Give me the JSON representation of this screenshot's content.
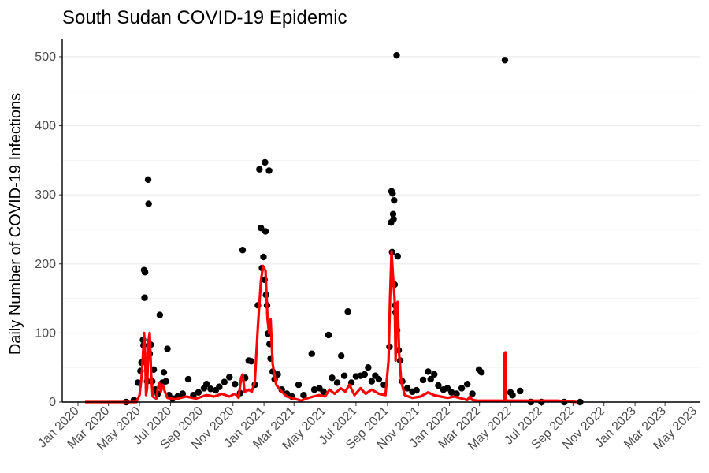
{
  "chart_data": {
    "type": "scatter",
    "title": "South Sudan COVID-19 Epidemic",
    "xlabel": "",
    "ylabel": "Daily Number of COVID-19 Infections",
    "ylim": [
      0,
      525
    ],
    "yticks": [
      0,
      100,
      200,
      300,
      400,
      500
    ],
    "xlim": [
      "2019-12-01",
      "2023-05-08"
    ],
    "xticks": [
      {
        "date": "2020-01-01",
        "label": "Jan 2020"
      },
      {
        "date": "2020-03-01",
        "label": "Mar 2020"
      },
      {
        "date": "2020-05-01",
        "label": "May 2020"
      },
      {
        "date": "2020-07-01",
        "label": "Jul 2020"
      },
      {
        "date": "2020-09-01",
        "label": "Sep 2020"
      },
      {
        "date": "2020-11-01",
        "label": "Nov 2020"
      },
      {
        "date": "2021-01-01",
        "label": "Jan 2021"
      },
      {
        "date": "2021-03-01",
        "label": "Mar 2021"
      },
      {
        "date": "2021-05-01",
        "label": "May 2021"
      },
      {
        "date": "2021-07-01",
        "label": "Jul 2021"
      },
      {
        "date": "2021-09-01",
        "label": "Sep 2021"
      },
      {
        "date": "2021-11-01",
        "label": "Nov 2021"
      },
      {
        "date": "2022-01-01",
        "label": "Jan 2022"
      },
      {
        "date": "2022-03-01",
        "label": "Mar 2022"
      },
      {
        "date": "2022-05-01",
        "label": "May 2022"
      },
      {
        "date": "2022-07-01",
        "label": "Jul 2022"
      },
      {
        "date": "2022-09-01",
        "label": "Sep 2022"
      },
      {
        "date": "2022-11-01",
        "label": "Nov 2022"
      },
      {
        "date": "2023-01-01",
        "label": "Jan 2023"
      },
      {
        "date": "2023-03-01",
        "label": "Mar 2023"
      },
      {
        "date": "2023-05-01",
        "label": "May 2023"
      }
    ],
    "grid": "horizontal",
    "colors": {
      "points": "#000000",
      "line": "#ff0000",
      "grid": "#ebebeb",
      "axis": "#000000"
    },
    "series": [
      {
        "type": "scatter",
        "points": [
          [
            "2020-04-05",
            0
          ],
          [
            "2020-04-20",
            3
          ],
          [
            "2020-04-28",
            28
          ],
          [
            "2020-05-03",
            45
          ],
          [
            "2020-05-05",
            57
          ],
          [
            "2020-05-08",
            90
          ],
          [
            "2020-05-09",
            82
          ],
          [
            "2020-05-10",
            191
          ],
          [
            "2020-05-11",
            151
          ],
          [
            "2020-05-12",
            188
          ],
          [
            "2020-05-14",
            60
          ],
          [
            "2020-05-16",
            30
          ],
          [
            "2020-05-18",
            322
          ],
          [
            "2020-05-19",
            287
          ],
          [
            "2020-05-21",
            70
          ],
          [
            "2020-05-23",
            83
          ],
          [
            "2020-05-26",
            30
          ],
          [
            "2020-05-29",
            47
          ],
          [
            "2020-06-01",
            18
          ],
          [
            "2020-06-06",
            12
          ],
          [
            "2020-06-10",
            126
          ],
          [
            "2020-06-15",
            28
          ],
          [
            "2020-06-18",
            43
          ],
          [
            "2020-06-22",
            30
          ],
          [
            "2020-06-25",
            77
          ],
          [
            "2020-06-28",
            10
          ],
          [
            "2020-07-05",
            5
          ],
          [
            "2020-07-15",
            8
          ],
          [
            "2020-07-25",
            12
          ],
          [
            "2020-08-05",
            33
          ],
          [
            "2020-08-15",
            10
          ],
          [
            "2020-08-25",
            14
          ],
          [
            "2020-09-05",
            20
          ],
          [
            "2020-09-10",
            26
          ],
          [
            "2020-09-18",
            19
          ],
          [
            "2020-09-28",
            17
          ],
          [
            "2020-10-05",
            22
          ],
          [
            "2020-10-15",
            29
          ],
          [
            "2020-10-25",
            36
          ],
          [
            "2020-11-05",
            26
          ],
          [
            "2020-11-15",
            13
          ],
          [
            "2020-11-20",
            220
          ],
          [
            "2020-11-25",
            35
          ],
          [
            "2020-12-02",
            60
          ],
          [
            "2020-12-07",
            59
          ],
          [
            "2020-12-14",
            25
          ],
          [
            "2020-12-20",
            140
          ],
          [
            "2020-12-23",
            337
          ],
          [
            "2020-12-26",
            252
          ],
          [
            "2020-12-28",
            194
          ],
          [
            "2020-12-31",
            210
          ],
          [
            "2021-01-02",
            177
          ],
          [
            "2021-01-03",
            347
          ],
          [
            "2021-01-04",
            247
          ],
          [
            "2021-01-05",
            155
          ],
          [
            "2021-01-07",
            140
          ],
          [
            "2021-01-09",
            99
          ],
          [
            "2021-01-11",
            335
          ],
          [
            "2021-01-12",
            84
          ],
          [
            "2021-01-14",
            63
          ],
          [
            "2021-01-18",
            44
          ],
          [
            "2021-01-22",
            33
          ],
          [
            "2021-01-28",
            40
          ],
          [
            "2021-02-05",
            18
          ],
          [
            "2021-02-15",
            12
          ],
          [
            "2021-02-25",
            8
          ],
          [
            "2021-03-10",
            25
          ],
          [
            "2021-03-20",
            10
          ],
          [
            "2021-04-05",
            70
          ],
          [
            "2021-04-10",
            18
          ],
          [
            "2021-04-20",
            20
          ],
          [
            "2021-04-28",
            15
          ],
          [
            "2021-05-08",
            97
          ],
          [
            "2021-05-15",
            35
          ],
          [
            "2021-05-25",
            28
          ],
          [
            "2021-06-02",
            67
          ],
          [
            "2021-06-08",
            38
          ],
          [
            "2021-06-15",
            131
          ],
          [
            "2021-06-22",
            28
          ],
          [
            "2021-07-01",
            37
          ],
          [
            "2021-07-10",
            38
          ],
          [
            "2021-07-18",
            40
          ],
          [
            "2021-07-25",
            50
          ],
          [
            "2021-08-01",
            30
          ],
          [
            "2021-08-08",
            38
          ],
          [
            "2021-08-15",
            33
          ],
          [
            "2021-08-25",
            25
          ],
          [
            "2021-09-05",
            80
          ],
          [
            "2021-09-08",
            260
          ],
          [
            "2021-09-09",
            305
          ],
          [
            "2021-09-10",
            217
          ],
          [
            "2021-09-11",
            302
          ],
          [
            "2021-09-12",
            272
          ],
          [
            "2021-09-13",
            265
          ],
          [
            "2021-09-14",
            292
          ],
          [
            "2021-09-15",
            170
          ],
          [
            "2021-09-16",
            140
          ],
          [
            "2021-09-17",
            130
          ],
          [
            "2021-09-19",
            502
          ],
          [
            "2021-09-20",
            104
          ],
          [
            "2021-09-21",
            211
          ],
          [
            "2021-09-23",
            75
          ],
          [
            "2021-09-26",
            60
          ],
          [
            "2021-09-30",
            30
          ],
          [
            "2021-10-10",
            20
          ],
          [
            "2021-10-20",
            15
          ],
          [
            "2021-10-28",
            17
          ],
          [
            "2021-11-10",
            32
          ],
          [
            "2021-11-20",
            44
          ],
          [
            "2021-11-25",
            33
          ],
          [
            "2021-12-02",
            40
          ],
          [
            "2021-12-10",
            24
          ],
          [
            "2021-12-20",
            18
          ],
          [
            "2021-12-28",
            20
          ],
          [
            "2022-01-05",
            14
          ],
          [
            "2022-01-15",
            12
          ],
          [
            "2022-01-25",
            20
          ],
          [
            "2022-02-05",
            26
          ],
          [
            "2022-02-15",
            12
          ],
          [
            "2022-02-28",
            47
          ],
          [
            "2022-03-05",
            43
          ],
          [
            "2022-04-20",
            495
          ],
          [
            "2022-05-01",
            14
          ],
          [
            "2022-05-05",
            10
          ],
          [
            "2022-05-20",
            16
          ],
          [
            "2022-06-10",
            0
          ],
          [
            "2022-07-01",
            0
          ],
          [
            "2022-08-15",
            0
          ],
          [
            "2022-09-15",
            0
          ]
        ]
      },
      {
        "type": "line",
        "points": [
          [
            "2020-01-15",
            0
          ],
          [
            "2020-04-01",
            0
          ],
          [
            "2020-04-25",
            0
          ],
          [
            "2020-05-01",
            10
          ],
          [
            "2020-05-05",
            35
          ],
          [
            "2020-05-08",
            70
          ],
          [
            "2020-05-10",
            100
          ],
          [
            "2020-05-12",
            70
          ],
          [
            "2020-05-14",
            10
          ],
          [
            "2020-05-16",
            20
          ],
          [
            "2020-05-19",
            90
          ],
          [
            "2020-05-21",
            100
          ],
          [
            "2020-05-24",
            40
          ],
          [
            "2020-05-27",
            8
          ],
          [
            "2020-06-03",
            5
          ],
          [
            "2020-06-06",
            20
          ],
          [
            "2020-06-09",
            27
          ],
          [
            "2020-06-12",
            15
          ],
          [
            "2020-06-16",
            25
          ],
          [
            "2020-06-20",
            15
          ],
          [
            "2020-06-25",
            6
          ],
          [
            "2020-07-10",
            4
          ],
          [
            "2020-08-01",
            8
          ],
          [
            "2020-08-20",
            5
          ],
          [
            "2020-09-10",
            10
          ],
          [
            "2020-09-25",
            8
          ],
          [
            "2020-10-10",
            12
          ],
          [
            "2020-10-25",
            8
          ],
          [
            "2020-11-05",
            12
          ],
          [
            "2020-11-12",
            6
          ],
          [
            "2020-11-17",
            35
          ],
          [
            "2020-11-20",
            40
          ],
          [
            "2020-11-24",
            15
          ],
          [
            "2020-12-02",
            18
          ],
          [
            "2020-12-08",
            15
          ],
          [
            "2020-12-14",
            30
          ],
          [
            "2020-12-20",
            110
          ],
          [
            "2020-12-26",
            175
          ],
          [
            "2020-12-30",
            197
          ],
          [
            "2021-01-04",
            190
          ],
          [
            "2021-01-08",
            120
          ],
          [
            "2021-01-11",
            100
          ],
          [
            "2021-01-14",
            120
          ],
          [
            "2021-01-18",
            55
          ],
          [
            "2021-01-25",
            25
          ],
          [
            "2021-02-05",
            15
          ],
          [
            "2021-02-15",
            8
          ],
          [
            "2021-03-01",
            5
          ],
          [
            "2021-03-15",
            2
          ],
          [
            "2021-03-25",
            5
          ],
          [
            "2021-04-08",
            8
          ],
          [
            "2021-04-20",
            10
          ],
          [
            "2021-05-01",
            8
          ],
          [
            "2021-05-10",
            18
          ],
          [
            "2021-05-20",
            12
          ],
          [
            "2021-06-01",
            20
          ],
          [
            "2021-06-10",
            15
          ],
          [
            "2021-06-18",
            25
          ],
          [
            "2021-06-28",
            10
          ],
          [
            "2021-07-10",
            20
          ],
          [
            "2021-07-20",
            12
          ],
          [
            "2021-08-01",
            18
          ],
          [
            "2021-08-15",
            12
          ],
          [
            "2021-08-28",
            10
          ],
          [
            "2021-09-03",
            60
          ],
          [
            "2021-09-06",
            150
          ],
          [
            "2021-09-09",
            218
          ],
          [
            "2021-09-12",
            180
          ],
          [
            "2021-09-15",
            150
          ],
          [
            "2021-09-17",
            60
          ],
          [
            "2021-09-19",
            140
          ],
          [
            "2021-09-21",
            145
          ],
          [
            "2021-09-24",
            70
          ],
          [
            "2021-09-28",
            30
          ],
          [
            "2021-10-05",
            10
          ],
          [
            "2021-10-20",
            6
          ],
          [
            "2021-11-05",
            8
          ],
          [
            "2021-11-20",
            14
          ],
          [
            "2021-12-01",
            10
          ],
          [
            "2021-12-15",
            8
          ],
          [
            "2021-12-28",
            6
          ],
          [
            "2022-01-10",
            8
          ],
          [
            "2022-01-25",
            5
          ],
          [
            "2022-02-05",
            3
          ],
          [
            "2022-02-10",
            8
          ],
          [
            "2022-02-15",
            3
          ],
          [
            "2022-02-25",
            2
          ],
          [
            "2022-03-20",
            2
          ],
          [
            "2022-04-18",
            2
          ],
          [
            "2022-04-19",
            70
          ],
          [
            "2022-04-21",
            72
          ],
          [
            "2022-04-22",
            2
          ],
          [
            "2022-05-15",
            2
          ],
          [
            "2022-06-15",
            2
          ],
          [
            "2022-08-01",
            2
          ],
          [
            "2022-09-08",
            0
          ]
        ]
      }
    ]
  }
}
